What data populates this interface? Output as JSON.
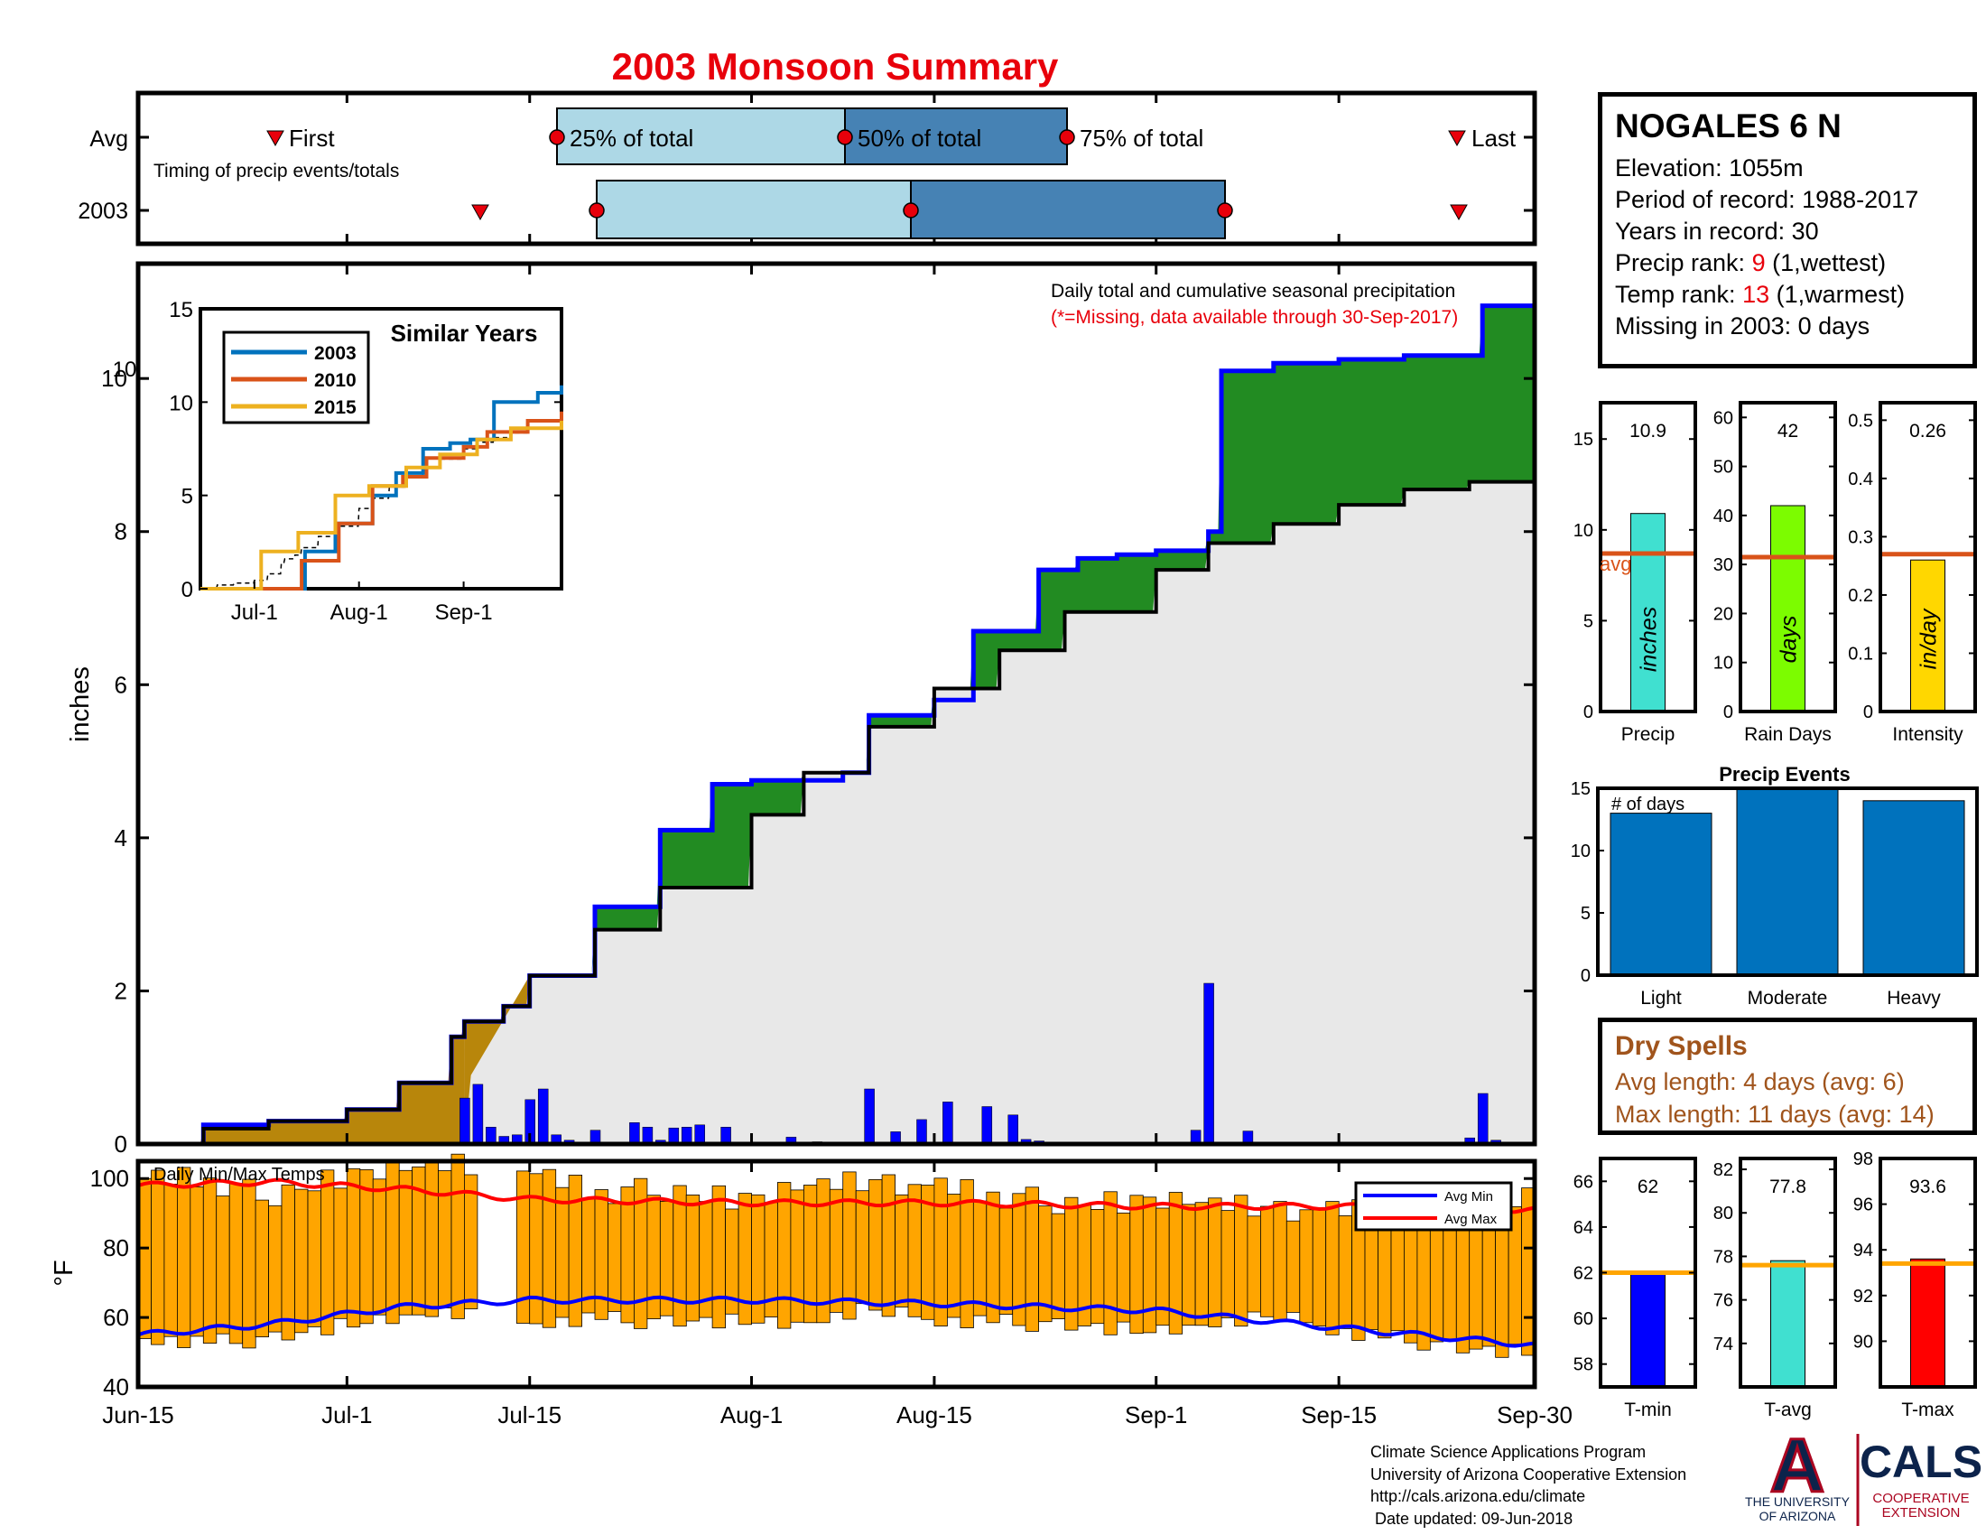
{
  "title": "2003 Monsoon Summary",
  "timing": {
    "row_labels": [
      "Avg",
      "2003"
    ],
    "caption": "Timing of precip events/totals",
    "labels": {
      "first": "First",
      "p25": "25% of total",
      "p50": "50% of total",
      "p75": "75% of total",
      "last": "Last"
    },
    "avg": {
      "first": "Jun-24",
      "p25": "Jul-15",
      "p50": "Aug-5",
      "p75": "Aug-21",
      "last": "Sep-27"
    },
    "y2003": {
      "first": "Jul-10",
      "p25": "Jul-18",
      "p50": "Aug-10",
      "p75": "Sep-2",
      "last": "Sep-27"
    }
  },
  "station": {
    "name": "NOGALES 6 N",
    "elevation_label": "Elevation: 1055m",
    "period_label": "Period of record: 1988-2017",
    "years_label": "Years in record: 30",
    "precip_rank_prefix": "Precip rank: ",
    "precip_rank_value": "9",
    "precip_rank_suffix": " (1,wettest)",
    "temp_rank_prefix": "Temp rank: ",
    "temp_rank_value": "13",
    "temp_rank_suffix": " (1,warmest)",
    "missing_label": "Missing in 2003: 0 days"
  },
  "main_chart": {
    "ylabel": "inches",
    "annotation": "Daily total and cumulative seasonal precipitation",
    "missing_note": "(*=Missing, data available through 30-Sep-2017)",
    "x_ticks": [
      "Jun-15",
      "Jul-1",
      "Jul-15",
      "Aug-1",
      "Aug-15",
      "Sep-1",
      "Sep-15",
      "Sep-30"
    ],
    "y_ticks": [
      "0",
      "2",
      "4",
      "6",
      "8",
      "10"
    ]
  },
  "inset": {
    "title": "Similar Years",
    "x_ticks": [
      "Jul-1",
      "Aug-1",
      "Sep-1"
    ],
    "y_ticks": [
      "0",
      "5",
      "10",
      "15"
    ],
    "extra_tick": "10",
    "legend": [
      "2003",
      "2010",
      "2015"
    ]
  },
  "temps": {
    "title": "Daily Min/Max Temps",
    "ylabel": "°F",
    "y_ticks": [
      "40",
      "60",
      "80",
      "100"
    ],
    "legend": [
      "Avg Min",
      "Avg Max"
    ]
  },
  "summary_bars": {
    "labels": [
      "Precip",
      "Rain Days",
      "Intensity"
    ],
    "values_text": [
      "10.9",
      "42",
      "0.26"
    ],
    "inner_labels": [
      "inches",
      "days",
      "in/day"
    ],
    "avg_label": "avg",
    "precip_ticks": [
      "0",
      "5",
      "10",
      "15"
    ],
    "raindays_ticks": [
      "0",
      "10",
      "20",
      "30",
      "40",
      "50",
      "60"
    ],
    "intensity_ticks": [
      "0",
      "0.1",
      "0.2",
      "0.3",
      "0.4",
      "0.5"
    ]
  },
  "events": {
    "title": "Precip Events",
    "sublabel": "# of days",
    "categories": [
      "Light",
      "Moderate",
      "Heavy"
    ],
    "y_ticks": [
      "0",
      "5",
      "10",
      "15"
    ]
  },
  "dry_spells": {
    "title": "Dry Spells",
    "avg_line": "Avg length: 4 days (avg: 6)",
    "max_line": "Max length: 11 days (avg: 14)"
  },
  "temp_summary": {
    "labels": [
      "T-min",
      "T-avg",
      "T-max"
    ],
    "values_text": [
      "62",
      "77.8",
      "93.6"
    ],
    "tmin_ticks": [
      "58",
      "60",
      "62",
      "64",
      "66"
    ],
    "tavg_ticks": [
      "74",
      "76",
      "78",
      "80",
      "82"
    ],
    "tmax_ticks": [
      "90",
      "92",
      "94",
      "96",
      "98"
    ]
  },
  "footer": {
    "line1": "Climate Science Applications Program",
    "line2": "University of Arizona Cooperative Extension",
    "line3": "http://cals.arizona.edu/climate",
    "line4": " Date updated: 09-Jun-2018"
  },
  "logos": {
    "ua_letter": "A",
    "ua_line1": "THE UNIVERSITY",
    "ua_line2": "OF ARIZONA",
    "cals": "CALS",
    "cals_line1": "COOPERATIVE",
    "cals_line2": "EXTENSION"
  },
  "colors": {
    "cum_2003": "#0000ff",
    "cum_avg": "#000000",
    "above_avg_fill": "#228b22",
    "pre_monsoon_fill": "#b8860b",
    "avg_fill": "#e8e8e8",
    "daily_bar": "#0000ff",
    "temp_bar": "#ffa500",
    "avg_min_line": "#0000ff",
    "avg_max_line": "#ff0000",
    "precip_bar": "#40e0d0",
    "raindays_bar": "#7cfc00",
    "intensity_bar": "#ffd700",
    "avg_line": "#d95319",
    "events_bar": "#0072bd",
    "tmin_bar": "#0000ff",
    "tavg_bar": "#40e0d0",
    "tmax_bar": "#ff0000",
    "tavg_line": "#ffa500"
  },
  "chart_data": [
    {
      "type": "area",
      "name": "cumulative-precipitation",
      "x_unit": "date",
      "xlim": [
        "Jun-15",
        "Sep-30"
      ],
      "ylim": [
        0,
        11.5
      ],
      "series": [
        {
          "x": [
            "Jun-15",
            "Jun-20",
            "Jun-25",
            "Jul-1",
            "Jul-5",
            "Jul-9",
            "Jul-10",
            "Jul-13",
            "Jul-15",
            "Jul-20",
            "Jul-25",
            "Jul-29",
            "Aug-1",
            "Aug-8",
            "Aug-10",
            "Aug-15",
            "Aug-18",
            "Aug-23",
            "Aug-26",
            "Aug-29",
            "Sep-1",
            "Sep-5",
            "Sep-6",
            "Sep-10",
            "Sep-15",
            "Sep-20",
            "Sep-26",
            "Sep-30"
          ],
          "values": [
            0,
            0.25,
            0.3,
            0.45,
            0.8,
            1.4,
            1.6,
            1.8,
            2.2,
            3.1,
            4.1,
            4.7,
            4.75,
            4.85,
            5.6,
            5.8,
            6.7,
            7.5,
            7.65,
            7.7,
            7.75,
            8.0,
            10.1,
            10.2,
            10.25,
            10.3,
            10.95,
            10.95
          ]
        },
        {
          "x": [
            "Jun-15",
            "Jun-20",
            "Jun-25",
            "Jul-1",
            "Jul-5",
            "Jul-9",
            "Jul-10",
            "Jul-13",
            "Jul-15",
            "Jul-20",
            "Jul-25",
            "Aug-1",
            "Aug-5",
            "Aug-10",
            "Aug-15",
            "Aug-20",
            "Aug-25",
            "Sep-1",
            "Sep-5",
            "Sep-10",
            "Sep-15",
            "Sep-20",
            "Sep-25",
            "Sep-30"
          ],
          "values": [
            0,
            0.2,
            0.3,
            0.45,
            0.8,
            1.4,
            1.6,
            1.8,
            2.2,
            2.8,
            3.35,
            4.3,
            4.85,
            5.45,
            5.95,
            6.45,
            6.95,
            7.5,
            7.85,
            8.1,
            8.35,
            8.55,
            8.65,
            8.7
          ]
        }
      ],
      "daily_bars": {
        "x": [
          "Jul-10",
          "Jul-11",
          "Jul-12",
          "Jul-13",
          "Jul-14",
          "Jul-15",
          "Jul-16",
          "Jul-17",
          "Jul-18",
          "Jul-20",
          "Jul-23",
          "Jul-24",
          "Jul-25",
          "Jul-26",
          "Jul-27",
          "Jul-28",
          "Jul-30",
          "Aug-4",
          "Aug-6",
          "Aug-8",
          "Aug-10",
          "Aug-12",
          "Aug-14",
          "Aug-16",
          "Aug-19",
          "Aug-21",
          "Aug-22",
          "Aug-23",
          "Sep-4",
          "Sep-5",
          "Sep-8",
          "Sep-25",
          "Sep-26",
          "Sep-27"
        ],
        "values": [
          0.6,
          0.78,
          0.22,
          0.1,
          0.12,
          0.58,
          0.72,
          0.12,
          0.05,
          0.18,
          0.28,
          0.22,
          0.05,
          0.21,
          0.22,
          0.25,
          0.22,
          0.09,
          0.03,
          0.02,
          0.72,
          0.16,
          0.32,
          0.55,
          0.49,
          0.38,
          0.06,
          0.04,
          0.18,
          2.1,
          0.17,
          0.08,
          0.66,
          0.05
        ]
      },
      "ylabel": "inches"
    },
    {
      "type": "line",
      "name": "similar-years",
      "x_unit": "date",
      "xlim": [
        "Jun-15",
        "Sep-30"
      ],
      "ylim": [
        0,
        15
      ],
      "series": [
        {
          "name": "2003",
          "x": [
            "Jun-15",
            "Jul-7",
            "Jul-16",
            "Jul-25",
            "Aug-5",
            "Aug-12",
            "Aug-20",
            "Aug-28",
            "Sep-3",
            "Sep-10",
            "Sep-23",
            "Sep-30"
          ],
          "values": [
            0,
            0,
            2,
            3.5,
            5,
            6.2,
            7.5,
            7.8,
            8,
            10,
            10.5,
            10.9
          ]
        },
        {
          "name": "2010",
          "x": [
            "Jun-15",
            "Jul-8",
            "Jul-15",
            "Jul-26",
            "Aug-5",
            "Aug-14",
            "Aug-21",
            "Sep-1",
            "Sep-8",
            "Sep-20",
            "Sep-30"
          ],
          "values": [
            0,
            0,
            1.5,
            3.5,
            5.5,
            6,
            7,
            7.6,
            8.4,
            9,
            9.5
          ]
        },
        {
          "name": "2015",
          "x": [
            "Jun-15",
            "Jun-28",
            "Jul-3",
            "Jul-14",
            "Jul-25",
            "Aug-4",
            "Aug-15",
            "Aug-25",
            "Sep-5",
            "Sep-15",
            "Sep-30"
          ],
          "values": [
            0,
            0,
            2,
            3,
            5,
            5.5,
            6.5,
            7.2,
            8,
            8.6,
            9
          ]
        }
      ],
      "legend_position": "top-left"
    },
    {
      "type": "bar",
      "name": "daily-min-max-temps",
      "x_unit": "date",
      "xlim": [
        "Jun-15",
        "Sep-30"
      ],
      "ylim": [
        40,
        105
      ],
      "ylabel": "°F",
      "daily_range": {
        "x": [
          "Jun-15",
          "Jun-20",
          "Jun-25",
          "Jul-1",
          "Jul-5",
          "Jul-9",
          "Jul-15",
          "Jul-20",
          "Jul-25",
          "Aug-1",
          "Aug-5",
          "Aug-10",
          "Aug-15",
          "Aug-20",
          "Aug-25",
          "Sep-1",
          "Sep-5",
          "Sep-10",
          "Sep-15",
          "Sep-20",
          "Sep-25",
          "Sep-30"
        ],
        "max": [
          100,
          100,
          94,
          101,
          103,
          104,
          102,
          96,
          96,
          94,
          98,
          99,
          98,
          95,
          92,
          94,
          93,
          91,
          91,
          90,
          93,
          96
        ],
        "min": [
          56,
          55,
          56,
          60,
          62,
          64,
          60,
          62,
          61,
          61,
          60,
          65,
          61,
          61,
          60,
          58,
          60,
          63,
          58,
          56,
          53,
          52
        ]
      },
      "series": [
        {
          "name": "Avg Min",
          "x": [
            "Jun-15",
            "Jun-25",
            "Jul-5",
            "Jul-15",
            "Aug-1",
            "Aug-15",
            "Sep-1",
            "Sep-15",
            "Sep-30"
          ],
          "values": [
            55,
            58,
            63,
            65,
            65,
            64,
            62,
            57,
            52
          ]
        },
        {
          "name": "Avg Max",
          "x": [
            "Jun-15",
            "Jun-25",
            "Jul-5",
            "Jul-15",
            "Aug-1",
            "Aug-15",
            "Sep-1",
            "Sep-15",
            "Sep-30"
          ],
          "values": [
            98,
            99,
            97,
            94,
            93,
            93,
            92,
            92,
            91
          ]
        }
      ]
    },
    {
      "type": "bar",
      "name": "seasonal-summary",
      "categories": [
        "Precip",
        "Rain Days",
        "Intensity"
      ],
      "values": [
        10.9,
        42,
        0.26
      ],
      "averages": [
        8.7,
        31.5,
        0.27
      ],
      "ylims": [
        [
          0,
          17
        ],
        [
          0,
          63
        ],
        [
          0,
          0.53
        ]
      ]
    },
    {
      "type": "bar",
      "name": "precip-events",
      "title": "Precip Events",
      "categories": [
        "Light",
        "Moderate",
        "Heavy"
      ],
      "values": [
        13,
        15,
        14
      ],
      "ylim": [
        0,
        15
      ]
    },
    {
      "type": "bar",
      "name": "temp-summary",
      "categories": [
        "T-min",
        "T-avg",
        "T-max"
      ],
      "values": [
        62,
        77.8,
        93.6
      ],
      "averages": [
        62,
        77.6,
        93.4
      ],
      "ylims": [
        [
          57,
          67
        ],
        [
          72,
          82.5
        ],
        [
          88,
          98
        ]
      ]
    }
  ]
}
